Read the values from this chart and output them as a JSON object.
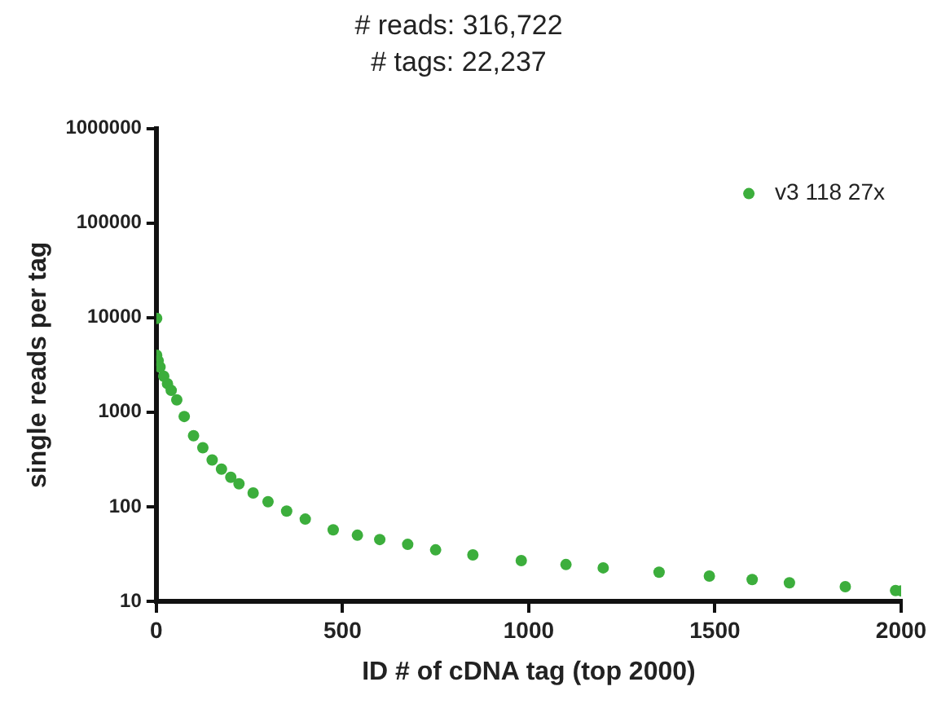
{
  "chart_data": {
    "type": "scatter",
    "title": "# reads: 316,722",
    "subtitle": "# tags: 22,237",
    "xlabel": "ID # of cDNA tag (top 2000)",
    "ylabel": "single reads per tag",
    "series": [
      {
        "name": "v3 118 27x",
        "color": "#3cae3c",
        "x": [
          1,
          1,
          5,
          10,
          20,
          30,
          40,
          55,
          75,
          100,
          125,
          150,
          175,
          200,
          222,
          260,
          300,
          350,
          400,
          475,
          540,
          600,
          675,
          750,
          850,
          980,
          1100,
          1200,
          1350,
          1485,
          1600,
          1700,
          1850,
          1985,
          2000
        ],
        "values": [
          9800,
          4000,
          3500,
          3000,
          2400,
          2000,
          1700,
          1350,
          900,
          564,
          420,
          312,
          250,
          205,
          175,
          140,
          113,
          90,
          74,
          57,
          50,
          45,
          40,
          35,
          31,
          27,
          24.5,
          22.6,
          20.3,
          18.5,
          17,
          15.7,
          14.3,
          13,
          12.9
        ]
      }
    ],
    "xlim": [
      0,
      2000
    ],
    "xticks": [
      0,
      500,
      1000,
      1500,
      2000
    ],
    "ylim": [
      10,
      1000000
    ],
    "yticks": [
      10,
      100,
      1000,
      10000,
      100000,
      1000000
    ],
    "log": "y",
    "grid": false,
    "legend": "top right",
    "marker": "circle"
  }
}
